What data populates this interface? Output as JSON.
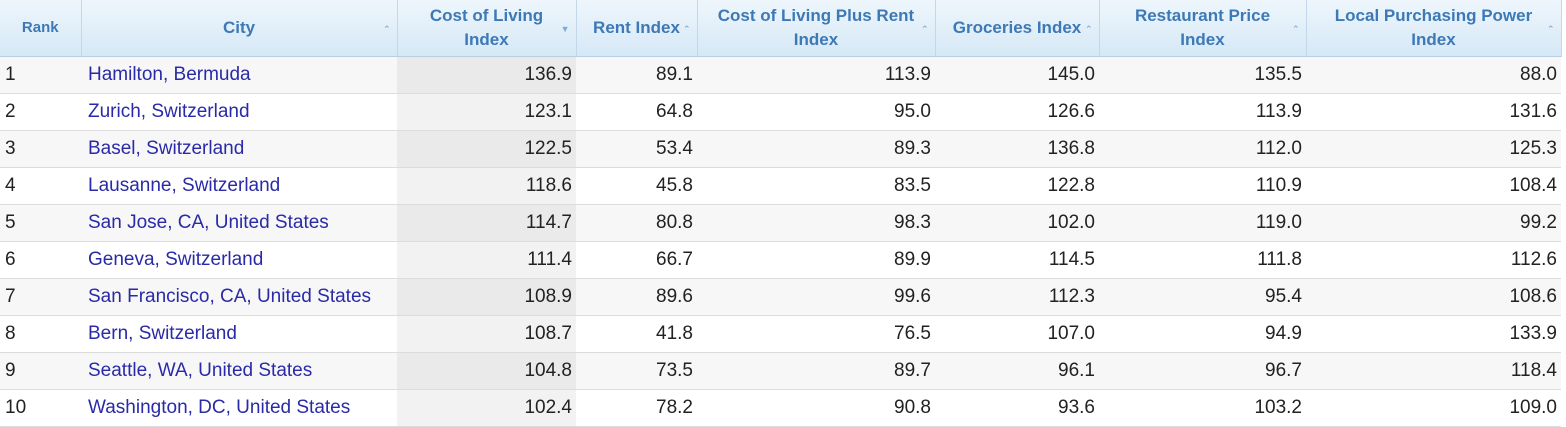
{
  "table": {
    "headers": {
      "rank": "Rank",
      "city": "City",
      "col": "Cost of Living Index",
      "rent": "Rent Index",
      "col_rent": "Cost of Living Plus Rent Index",
      "groceries": "Groceries Index",
      "restaurant": "Restaurant Price Index",
      "lpp": "Local Purchasing Power Index"
    },
    "sort_icons": {
      "city": "chevron-up-icon",
      "col": "caret-down-icon",
      "rent": "chevron-up-icon",
      "col_rent": "chevron-up-icon",
      "groceries": "chevron-up-icon",
      "restaurant": "chevron-up-icon",
      "lpp": "chevron-up-icon"
    },
    "rows": [
      {
        "rank": "1",
        "city": "Hamilton, Bermuda",
        "col": "136.9",
        "rent": "89.1",
        "col_rent": "113.9",
        "groceries": "145.0",
        "restaurant": "135.5",
        "lpp": "88.0"
      },
      {
        "rank": "2",
        "city": "Zurich, Switzerland",
        "col": "123.1",
        "rent": "64.8",
        "col_rent": "95.0",
        "groceries": "126.6",
        "restaurant": "113.9",
        "lpp": "131.6"
      },
      {
        "rank": "3",
        "city": "Basel, Switzerland",
        "col": "122.5",
        "rent": "53.4",
        "col_rent": "89.3",
        "groceries": "136.8",
        "restaurant": "112.0",
        "lpp": "125.3"
      },
      {
        "rank": "4",
        "city": "Lausanne, Switzerland",
        "col": "118.6",
        "rent": "45.8",
        "col_rent": "83.5",
        "groceries": "122.8",
        "restaurant": "110.9",
        "lpp": "108.4"
      },
      {
        "rank": "5",
        "city": "San Jose, CA, United States",
        "col": "114.7",
        "rent": "80.8",
        "col_rent": "98.3",
        "groceries": "102.0",
        "restaurant": "119.0",
        "lpp": "99.2"
      },
      {
        "rank": "6",
        "city": "Geneva, Switzerland",
        "col": "111.4",
        "rent": "66.7",
        "col_rent": "89.9",
        "groceries": "114.5",
        "restaurant": "111.8",
        "lpp": "112.6"
      },
      {
        "rank": "7",
        "city": "San Francisco, CA, United States",
        "col": "108.9",
        "rent": "89.6",
        "col_rent": "99.6",
        "groceries": "112.3",
        "restaurant": "95.4",
        "lpp": "108.6"
      },
      {
        "rank": "8",
        "city": "Bern, Switzerland",
        "col": "108.7",
        "rent": "41.8",
        "col_rent": "76.5",
        "groceries": "107.0",
        "restaurant": "94.9",
        "lpp": "133.9"
      },
      {
        "rank": "9",
        "city": "Seattle, WA, United States",
        "col": "104.8",
        "rent": "73.5",
        "col_rent": "89.7",
        "groceries": "96.1",
        "restaurant": "96.7",
        "lpp": "118.4"
      },
      {
        "rank": "10",
        "city": "Washington, DC, United States",
        "col": "102.4",
        "rent": "78.2",
        "col_rent": "90.8",
        "groceries": "93.6",
        "restaurant": "103.2",
        "lpp": "109.0"
      }
    ]
  },
  "colors": {
    "header_text": "#3d79b6",
    "link": "#2a2aa8",
    "sorted_column_bg": "#eaeaea"
  }
}
